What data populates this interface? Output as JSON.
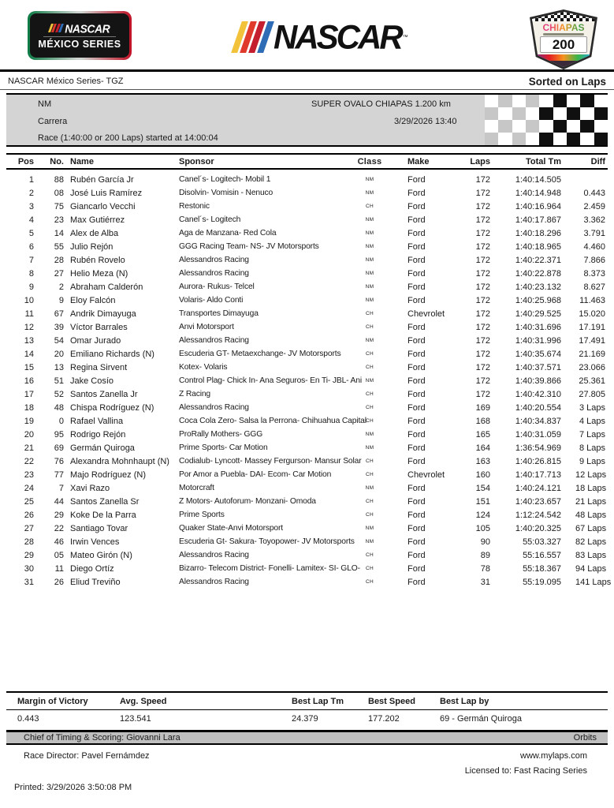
{
  "header": {
    "series_logo": {
      "nascar": "NASCAR",
      "series": "MÉXICO SERIES"
    },
    "nascar_wordmark": "NASCAR",
    "nascar_tm": "™",
    "badge": {
      "title": "CHIAPAS",
      "number": "200"
    },
    "bar_colors": [
      "#f2c23a",
      "#e03a2c",
      "#c41e2f",
      "#2e6cb5"
    ]
  },
  "subheader": {
    "left": "NASCAR México Series-  TGZ",
    "right": "Sorted on Laps"
  },
  "banner": {
    "class_code": "NM",
    "track": "SUPER OVALO CHIAPAS  1.200 km",
    "session": "Carrera",
    "datetime": "3/29/2026  13:40",
    "race_info": "Race (1:40:00 or 200 Laps) started at 14:00:04"
  },
  "table": {
    "headers": [
      "Pos",
      "No.",
      "Name",
      "Sponsor",
      "Class",
      "Make",
      "Laps",
      "Total Tm",
      "Diff"
    ],
    "rows": [
      {
        "pos": "1",
        "no": "88",
        "name": "Rubén García Jr",
        "sponsor": "Canel´s- Logitech- Mobil 1",
        "class": "NM",
        "make": "Ford",
        "laps": "172",
        "total": "1:40:14.505",
        "diff": ""
      },
      {
        "pos": "2",
        "no": "08",
        "name": "José Luis Ramírez",
        "sponsor": "Disolvin- Vomisin - Nenuco",
        "class": "NM",
        "make": "Ford",
        "laps": "172",
        "total": "1:40:14.948",
        "diff": "0.443"
      },
      {
        "pos": "3",
        "no": "75",
        "name": "Giancarlo Vecchi",
        "sponsor": "Restonic",
        "class": "CH",
        "make": "Ford",
        "laps": "172",
        "total": "1:40:16.964",
        "diff": "2.459"
      },
      {
        "pos": "4",
        "no": "23",
        "name": "Max Gutiérrez",
        "sponsor": "Canel´s- Logitech",
        "class": "NM",
        "make": "Ford",
        "laps": "172",
        "total": "1:40:17.867",
        "diff": "3.362"
      },
      {
        "pos": "5",
        "no": "14",
        "name": "Alex de Alba",
        "sponsor": "Aga de Manzana- Red Cola",
        "class": "NM",
        "make": "Ford",
        "laps": "172",
        "total": "1:40:18.296",
        "diff": "3.791"
      },
      {
        "pos": "6",
        "no": "55",
        "name": "Julio Rejón",
        "sponsor": "GGG Racing Team- NS- JV Motorsports",
        "class": "NM",
        "make": "Ford",
        "laps": "172",
        "total": "1:40:18.965",
        "diff": "4.460"
      },
      {
        "pos": "7",
        "no": "28",
        "name": "Rubén Rovelo",
        "sponsor": "Alessandros Racing",
        "class": "NM",
        "make": "Ford",
        "laps": "172",
        "total": "1:40:22.371",
        "diff": "7.866"
      },
      {
        "pos": "8",
        "no": "27",
        "name": "Helio Meza (N)",
        "sponsor": "Alessandros Racing",
        "class": "NM",
        "make": "Ford",
        "laps": "172",
        "total": "1:40:22.878",
        "diff": "8.373"
      },
      {
        "pos": "9",
        "no": "2",
        "name": "Abraham Calderón",
        "sponsor": "Aurora- Rukus- Telcel",
        "class": "NM",
        "make": "Ford",
        "laps": "172",
        "total": "1:40:23.132",
        "diff": "8.627"
      },
      {
        "pos": "10",
        "no": "9",
        "name": "Eloy Falcón",
        "sponsor": "Volaris- Aldo Conti",
        "class": "NM",
        "make": "Ford",
        "laps": "172",
        "total": "1:40:25.968",
        "diff": "11.463"
      },
      {
        "pos": "11",
        "no": "67",
        "name": "Andrik Dimayuga",
        "sponsor": "Transportes Dimayuga",
        "class": "CH",
        "make": "Chevrolet",
        "laps": "172",
        "total": "1:40:29.525",
        "diff": "15.020"
      },
      {
        "pos": "12",
        "no": "39",
        "name": "Víctor Barrales",
        "sponsor": "Anvi Motorsport",
        "class": "CH",
        "make": "Ford",
        "laps": "172",
        "total": "1:40:31.696",
        "diff": "17.191"
      },
      {
        "pos": "13",
        "no": "54",
        "name": "Omar Jurado",
        "sponsor": "Alessandros Racing",
        "class": "NM",
        "make": "Ford",
        "laps": "172",
        "total": "1:40:31.996",
        "diff": "17.491"
      },
      {
        "pos": "14",
        "no": "20",
        "name": "Emiliano Richards (N)",
        "sponsor": "Escuderia GT- Metaexchange- JV Motorsports",
        "class": "CH",
        "make": "Ford",
        "laps": "172",
        "total": "1:40:35.674",
        "diff": "21.169"
      },
      {
        "pos": "15",
        "no": "13",
        "name": "Regina Sirvent",
        "sponsor": "Kotex- Volaris",
        "class": "CH",
        "make": "Ford",
        "laps": "172",
        "total": "1:40:37.571",
        "diff": "23.066"
      },
      {
        "pos": "16",
        "no": "51",
        "name": "Jake Cosío",
        "sponsor": "Control Plag- Chick In- Ana Seguros- En Ti- JBL- Ani",
        "class": "NM",
        "make": "Ford",
        "laps": "172",
        "total": "1:40:39.866",
        "diff": "25.361"
      },
      {
        "pos": "17",
        "no": "52",
        "name": "Santos Zanella Jr",
        "sponsor": "Z Racing",
        "class": "CH",
        "make": "Ford",
        "laps": "172",
        "total": "1:40:42.310",
        "diff": "27.805"
      },
      {
        "pos": "18",
        "no": "48",
        "name": "Chispa Rodríguez (N)",
        "sponsor": "Alessandros Racing",
        "class": "CH",
        "make": "Ford",
        "laps": "169",
        "total": "1:40:20.554",
        "diff": "3 Laps"
      },
      {
        "pos": "19",
        "no": "0",
        "name": "Rafael Vallina",
        "sponsor": "Coca Cola Zero- Salsa la Perrona- Chihuahua Capital",
        "class": "CH",
        "make": "Ford",
        "laps": "168",
        "total": "1:40:34.837",
        "diff": "4 Laps"
      },
      {
        "pos": "20",
        "no": "95",
        "name": "Rodrigo Rejón",
        "sponsor": "ProRally Mothers- GGG",
        "class": "NM",
        "make": "Ford",
        "laps": "165",
        "total": "1:40:31.059",
        "diff": "7 Laps"
      },
      {
        "pos": "21",
        "no": "69",
        "name": "Germán Quiroga",
        "sponsor": "Prime Sports- Car Motion",
        "class": "NM",
        "make": "Ford",
        "laps": "164",
        "total": "1:36:54.969",
        "diff": "8 Laps"
      },
      {
        "pos": "22",
        "no": "76",
        "name": "Alexandra Mohnhaupt (N)",
        "sponsor": "Codialub- Lyncott- Massey Fergurson- Mansur Solar",
        "class": "CH",
        "make": "Ford",
        "laps": "163",
        "total": "1:40:26.815",
        "diff": "9 Laps"
      },
      {
        "pos": "23",
        "no": "77",
        "name": "Majo Rodríguez (N)",
        "sponsor": "Por Amor a Puebla- DAI- Ecom- Car Motion",
        "class": "CH",
        "make": "Chevrolet",
        "laps": "160",
        "total": "1:40:17.713",
        "diff": "12 Laps"
      },
      {
        "pos": "24",
        "no": "7",
        "name": "Xavi Razo",
        "sponsor": "Motorcraft",
        "class": "NM",
        "make": "Ford",
        "laps": "154",
        "total": "1:40:24.121",
        "diff": "18 Laps"
      },
      {
        "pos": "25",
        "no": "44",
        "name": "Santos Zanella Sr",
        "sponsor": "Z Motors- Autoforum- Monzani- Omoda",
        "class": "CH",
        "make": "Ford",
        "laps": "151",
        "total": "1:40:23.657",
        "diff": "21 Laps"
      },
      {
        "pos": "26",
        "no": "29",
        "name": "Koke De la Parra",
        "sponsor": "Prime Sports",
        "class": "CH",
        "make": "Ford",
        "laps": "124",
        "total": "1:12:24.542",
        "diff": "48 Laps"
      },
      {
        "pos": "27",
        "no": "22",
        "name": "Santiago Tovar",
        "sponsor": "Quaker State-Anvi Motorsport",
        "class": "NM",
        "make": "Ford",
        "laps": "105",
        "total": "1:40:20.325",
        "diff": "67 Laps"
      },
      {
        "pos": "28",
        "no": "46",
        "name": "Irwin Vences",
        "sponsor": "Escuderia Gt- Sakura- Toyopower- JV Motorsports",
        "class": "NM",
        "make": "Ford",
        "laps": "90",
        "total": "55:03.327",
        "diff": "82 Laps"
      },
      {
        "pos": "29",
        "no": "05",
        "name": "Mateo Girón (N)",
        "sponsor": "Alessandros Racing",
        "class": "CH",
        "make": "Ford",
        "laps": "89",
        "total": "55:16.557",
        "diff": "83 Laps"
      },
      {
        "pos": "30",
        "no": "11",
        "name": "Diego Ortíz",
        "sponsor": "Bizarro- Telecom District- Fonelli- Lamitex- SI- GLO-",
        "class": "CH",
        "make": "Ford",
        "laps": "78",
        "total": "55:18.367",
        "diff": "94 Laps"
      },
      {
        "pos": "31",
        "no": "26",
        "name": "Eliud Treviño",
        "sponsor": "Alessandros Racing",
        "class": "CH",
        "make": "Ford",
        "laps": "31",
        "total": "55:19.095",
        "diff": "141 Laps"
      }
    ]
  },
  "summary": {
    "items": [
      {
        "label": "Margin of Victory",
        "value": "0.443"
      },
      {
        "label": "Avg. Speed",
        "value": "123.541"
      },
      {
        "label": "Best Lap Tm",
        "value": "24.379"
      },
      {
        "label": "Best Speed",
        "value": "177.202"
      },
      {
        "label": "Best Lap by",
        "value": "69 - Germán Quiroga"
      }
    ]
  },
  "officials": {
    "chief": "Chief of Timing & Scoring: Giovanni Lara",
    "orbits": "Orbits",
    "race_director": "Race Director:  Pavel Fernámdez"
  },
  "footer": {
    "website": "www.mylaps.com",
    "licensed": "Licensed to:   Fast Racing Series",
    "printed": "Printed: 3/29/2026 3:50:08 PM"
  }
}
